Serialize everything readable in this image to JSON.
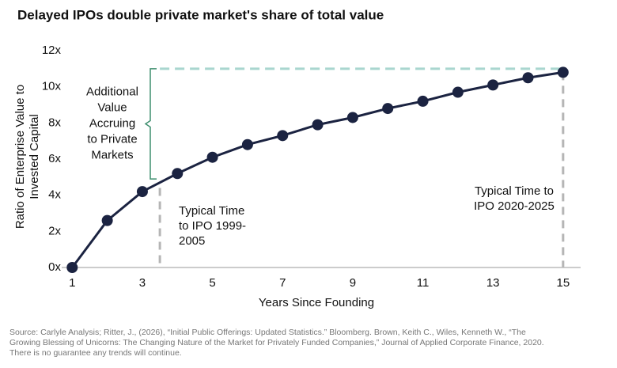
{
  "chart_data": {
    "type": "line",
    "title": "Delayed IPOs double private market's share of total value",
    "xlabel": "Years Since Founding",
    "ylabel": [
      "Ratio of Enterprise Value to",
      "Invested Capital"
    ],
    "x": [
      1,
      2,
      3,
      4,
      5,
      6,
      7,
      8,
      9,
      10,
      11,
      12,
      13,
      14,
      15
    ],
    "series": [
      {
        "name": "Enterprise Value to Invested Capital",
        "color": "#1b2341",
        "values": [
          0,
          2.6,
          4.2,
          5.2,
          6.1,
          6.8,
          7.3,
          7.9,
          8.3,
          8.8,
          9.2,
          9.7,
          10.1,
          10.5,
          10.8
        ]
      }
    ],
    "xlim": [
      0.7,
      15.5
    ],
    "ylim": [
      0,
      12
    ],
    "xticks": [
      1,
      3,
      5,
      7,
      9,
      11,
      13,
      15
    ],
    "yticks": [
      {
        "value": 0,
        "label": "0x"
      },
      {
        "value": 2,
        "label": "2x"
      },
      {
        "value": 4,
        "label": "4x"
      },
      {
        "value": 6,
        "label": "6x"
      },
      {
        "value": 8,
        "label": "8x"
      },
      {
        "value": 10,
        "label": "10x"
      },
      {
        "value": 12,
        "label": "12x"
      }
    ],
    "hline": {
      "y": 11,
      "x": [
        3.5,
        15
      ],
      "color": "#a9d6cf"
    },
    "vlines": [
      {
        "x": 3.5,
        "ymax": 4.4,
        "text": [
          "Typical Time",
          "to IPO 1999-",
          "2005"
        ]
      },
      {
        "x": 15,
        "ymax": 10.8,
        "text": [
          "Typical Time to",
          "IPO 2020-2025"
        ]
      }
    ],
    "vline_color": "#b5b5b5",
    "bracket": {
      "y": [
        4.9,
        11
      ],
      "color": "#3f8f6f",
      "text": [
        "Additional",
        "Value",
        "Accruing",
        "to Private",
        "Markets"
      ]
    },
    "source": [
      "Source: Carlyle Analysis; Ritter, J., (2026), “Initial Public Offerings: Updated Statistics.” Bloomberg.  Brown, Keith C., Wiles, Kenneth W., “The",
      "Growing Blessing of Unicorns: The Changing Nature of the Market for Privately Funded Companies,” Journal of Applied Corporate Finance, 2020.",
      "There is no guarantee any trends will continue."
    ]
  }
}
